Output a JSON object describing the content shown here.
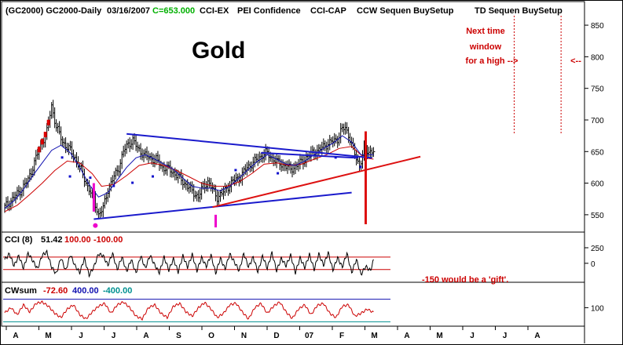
{
  "chart_data": {
    "type": "line",
    "header": {
      "symbol": "(GC2000) GC2000-Daily",
      "date": "03/16/2007",
      "close": "C=653.000",
      "studies": [
        "CCI-EX",
        "PEI Confidence",
        "CCI-CAP",
        "CCW Sequen BuySetup",
        "TD Sequen BuySetup"
      ]
    },
    "title": "Gold",
    "annotations": {
      "time_window": [
        "Next time",
        "window",
        "for a high -->"
      ],
      "arrow_right": "<--",
      "gift_note": "-150 would be a 'gift'."
    },
    "colors": {
      "price": "#000000",
      "ma_fast": "#1010b0",
      "ma_slow": "#cc0000",
      "trendline_blue": "#1a1acc",
      "trendline_red": "#dd1111",
      "magenta": "#ee00cc",
      "annotation_red": "#cc0000",
      "cci_level_high": "#cc0000",
      "cci_level_low": "#cc0000",
      "cw_level_high": "#1010b0",
      "cw_level_low": "#009090"
    },
    "x_axis": {
      "labels": [
        "A",
        "M",
        "J",
        "J",
        "A",
        "S",
        "O",
        "N",
        "D",
        "07",
        "F",
        "M",
        "A",
        "M",
        "J",
        "J",
        "A"
      ]
    },
    "price_panel": {
      "y_axis_ticks": [
        850,
        800,
        750,
        700,
        650,
        600,
        550
      ],
      "ylim": [
        530,
        865
      ],
      "x_index_range": [
        0,
        243
      ],
      "close_series": [
        [
          0,
          562
        ],
        [
          5,
          575
        ],
        [
          10,
          588
        ],
        [
          15,
          605
        ],
        [
          20,
          640
        ],
        [
          24,
          665
        ],
        [
          27,
          682
        ],
        [
          30,
          722
        ],
        [
          33,
          690
        ],
        [
          37,
          665
        ],
        [
          41,
          655
        ],
        [
          45,
          640
        ],
        [
          49,
          620
        ],
        [
          53,
          595
        ],
        [
          57,
          575
        ],
        [
          60,
          550
        ],
        [
          63,
          560
        ],
        [
          66,
          590
        ],
        [
          70,
          610
        ],
        [
          73,
          625
        ],
        [
          76,
          650
        ],
        [
          79,
          662
        ],
        [
          82,
          668
        ],
        [
          85,
          655
        ],
        [
          89,
          645
        ],
        [
          93,
          640
        ],
        [
          97,
          637
        ],
        [
          101,
          625
        ],
        [
          105,
          622
        ],
        [
          109,
          615
        ],
        [
          113,
          605
        ],
        [
          117,
          595
        ],
        [
          121,
          585
        ],
        [
          124,
          578
        ],
        [
          127,
          595
        ],
        [
          130,
          602
        ],
        [
          133,
          590
        ],
        [
          136,
          578
        ],
        [
          139,
          583
        ],
        [
          143,
          595
        ],
        [
          147,
          605
        ],
        [
          151,
          610
        ],
        [
          155,
          625
        ],
        [
          159,
          632
        ],
        [
          163,
          641
        ],
        [
          167,
          648
        ],
        [
          171,
          640
        ],
        [
          175,
          632
        ],
        [
          179,
          628
        ],
        [
          183,
          622
        ],
        [
          187,
          628
        ],
        [
          191,
          636
        ],
        [
          194,
          642
        ],
        [
          197,
          648
        ],
        [
          201,
          652
        ],
        [
          205,
          660
        ],
        [
          209,
          665
        ],
        [
          213,
          670
        ],
        [
          215,
          682
        ],
        [
          218,
          688
        ],
        [
          221,
          670
        ],
        [
          224,
          645
        ],
        [
          227,
          628
        ],
        [
          230,
          652
        ],
        [
          233,
          650
        ],
        [
          236,
          652
        ]
      ],
      "ma_fast_series": [
        [
          0,
          560
        ],
        [
          6,
          572
        ],
        [
          12,
          590
        ],
        [
          18,
          612
        ],
        [
          24,
          632
        ],
        [
          30,
          652
        ],
        [
          36,
          660
        ],
        [
          42,
          648
        ],
        [
          48,
          625
        ],
        [
          54,
          598
        ],
        [
          60,
          578
        ],
        [
          66,
          585
        ],
        [
          72,
          605
        ],
        [
          78,
          625
        ],
        [
          84,
          640
        ],
        [
          90,
          645
        ],
        [
          96,
          638
        ],
        [
          102,
          630
        ],
        [
          108,
          622
        ],
        [
          114,
          608
        ],
        [
          120,
          595
        ],
        [
          126,
          592
        ],
        [
          132,
          592
        ],
        [
          138,
          588
        ],
        [
          144,
          595
        ],
        [
          150,
          608
        ],
        [
          156,
          622
        ],
        [
          162,
          635
        ],
        [
          168,
          645
        ],
        [
          174,
          638
        ],
        [
          180,
          630
        ],
        [
          186,
          628
        ],
        [
          192,
          635
        ],
        [
          198,
          645
        ],
        [
          204,
          655
        ],
        [
          210,
          663
        ],
        [
          216,
          675
        ],
        [
          222,
          665
        ],
        [
          228,
          645
        ],
        [
          236,
          645
        ]
      ],
      "ma_slow_series": [
        [
          0,
          555
        ],
        [
          8,
          565
        ],
        [
          16,
          582
        ],
        [
          24,
          600
        ],
        [
          32,
          620
        ],
        [
          40,
          635
        ],
        [
          48,
          632
        ],
        [
          56,
          615
        ],
        [
          62,
          595
        ],
        [
          70,
          598
        ],
        [
          78,
          612
        ],
        [
          86,
          628
        ],
        [
          94,
          632
        ],
        [
          102,
          628
        ],
        [
          110,
          620
        ],
        [
          118,
          610
        ],
        [
          126,
          600
        ],
        [
          134,
          595
        ],
        [
          142,
          595
        ],
        [
          150,
          602
        ],
        [
          158,
          615
        ],
        [
          166,
          630
        ],
        [
          174,
          632
        ],
        [
          182,
          628
        ],
        [
          190,
          630
        ],
        [
          198,
          638
        ],
        [
          206,
          645
        ],
        [
          214,
          655
        ],
        [
          222,
          658
        ],
        [
          230,
          640
        ],
        [
          236,
          638
        ]
      ],
      "markers": {
        "red_early_x": [
          22,
          24,
          26,
          28
        ],
        "blue_dots": [
          [
            37,
            640
          ],
          [
            42,
            610
          ],
          [
            55,
            608
          ],
          [
            70,
            595
          ],
          [
            82,
            600
          ],
          [
            95,
            610
          ],
          [
            148,
            620
          ],
          [
            175,
            615
          ],
          [
            212,
            640
          ],
          [
            228,
            625
          ]
        ],
        "magenta_bars_x": [
          57,
          135,
          231
        ],
        "magenta_dot_x": 58,
        "red_vline_x": 231
      },
      "trendlines": [
        {
          "color": "blue",
          "points": [
            [
              57,
              543
            ],
            [
              222,
              585
            ]
          ]
        },
        {
          "color": "blue",
          "points": [
            [
              78,
              678
            ],
            [
              235,
              640
            ]
          ]
        },
        {
          "color": "red",
          "points": [
            [
              133,
              562
            ],
            [
              266,
              642
            ]
          ]
        },
        {
          "color": "blue",
          "points": [
            [
              164,
              648
            ],
            [
              226,
              640
            ]
          ]
        }
      ],
      "vlines_dashed": [
        {
          "color": "red",
          "x_index": 326
        },
        {
          "color": "red",
          "x_index": 356
        }
      ]
    },
    "cci_panel": {
      "label": "CCI (8)",
      "value": "51.42",
      "level_high": "100.00",
      "level_low": "-100.00",
      "y_axis_ticks": [
        250,
        0
      ],
      "ylim": [
        -280,
        300
      ],
      "levels": [
        100,
        -100
      ],
      "series": [
        [
          0,
          60
        ],
        [
          3,
          150
        ],
        [
          6,
          -40
        ],
        [
          9,
          120
        ],
        [
          12,
          -80
        ],
        [
          15,
          160
        ],
        [
          18,
          40
        ],
        [
          21,
          -90
        ],
        [
          24,
          130
        ],
        [
          27,
          180
        ],
        [
          30,
          -60
        ],
        [
          33,
          -170
        ],
        [
          36,
          90
        ],
        [
          39,
          -120
        ],
        [
          42,
          140
        ],
        [
          45,
          -40
        ],
        [
          48,
          -150
        ],
        [
          51,
          80
        ],
        [
          54,
          -190
        ],
        [
          57,
          -60
        ],
        [
          60,
          150
        ],
        [
          63,
          120
        ],
        [
          66,
          -30
        ],
        [
          69,
          160
        ],
        [
          72,
          -100
        ],
        [
          75,
          100
        ],
        [
          78,
          -130
        ],
        [
          81,
          60
        ],
        [
          84,
          -160
        ],
        [
          87,
          120
        ],
        [
          90,
          -80
        ],
        [
          93,
          130
        ],
        [
          96,
          -30
        ],
        [
          99,
          -150
        ],
        [
          102,
          100
        ],
        [
          105,
          -110
        ],
        [
          108,
          70
        ],
        [
          111,
          -140
        ],
        [
          114,
          120
        ],
        [
          117,
          -60
        ],
        [
          120,
          140
        ],
        [
          123,
          -120
        ],
        [
          126,
          90
        ],
        [
          129,
          -50
        ],
        [
          132,
          130
        ],
        [
          135,
          -160
        ],
        [
          138,
          80
        ],
        [
          141,
          -90
        ],
        [
          144,
          150
        ],
        [
          147,
          20
        ],
        [
          150,
          -120
        ],
        [
          153,
          160
        ],
        [
          156,
          -60
        ],
        [
          159,
          100
        ],
        [
          162,
          -140
        ],
        [
          165,
          120
        ],
        [
          168,
          -80
        ],
        [
          171,
          170
        ],
        [
          174,
          -120
        ],
        [
          177,
          80
        ],
        [
          180,
          -40
        ],
        [
          183,
          130
        ],
        [
          186,
          -150
        ],
        [
          189,
          90
        ],
        [
          192,
          -70
        ],
        [
          195,
          140
        ],
        [
          198,
          -100
        ],
        [
          201,
          150
        ],
        [
          204,
          -30
        ],
        [
          207,
          170
        ],
        [
          210,
          -110
        ],
        [
          213,
          90
        ],
        [
          216,
          -60
        ],
        [
          219,
          160
        ],
        [
          222,
          -150
        ],
        [
          225,
          60
        ],
        [
          228,
          -180
        ],
        [
          231,
          -50
        ],
        [
          234,
          -120
        ],
        [
          236,
          51
        ]
      ]
    },
    "cwsum_panel": {
      "label": "CWsum",
      "value": "-72.60",
      "level_high": "400.00",
      "level_low": "-400.00",
      "y_axis_ticks": [
        100
      ],
      "ylim": [
        -500,
        500
      ],
      "levels": [
        400,
        -400
      ],
      "series": [
        [
          0,
          -80
        ],
        [
          4,
          100
        ],
        [
          8,
          -150
        ],
        [
          12,
          200
        ],
        [
          16,
          -50
        ],
        [
          20,
          250
        ],
        [
          24,
          300
        ],
        [
          28,
          150
        ],
        [
          32,
          -100
        ],
        [
          36,
          -250
        ],
        [
          40,
          50
        ],
        [
          44,
          200
        ],
        [
          48,
          -150
        ],
        [
          52,
          -300
        ],
        [
          56,
          -50
        ],
        [
          60,
          150
        ],
        [
          64,
          250
        ],
        [
          68,
          -100
        ],
        [
          72,
          200
        ],
        [
          76,
          300
        ],
        [
          80,
          100
        ],
        [
          84,
          -200
        ],
        [
          88,
          -300
        ],
        [
          92,
          100
        ],
        [
          96,
          200
        ],
        [
          100,
          -100
        ],
        [
          104,
          -250
        ],
        [
          108,
          150
        ],
        [
          112,
          250
        ],
        [
          116,
          -50
        ],
        [
          120,
          -200
        ],
        [
          124,
          100
        ],
        [
          128,
          280
        ],
        [
          132,
          50
        ],
        [
          136,
          -250
        ],
        [
          140,
          -100
        ],
        [
          144,
          200
        ],
        [
          148,
          260
        ],
        [
          152,
          -50
        ],
        [
          156,
          -300
        ],
        [
          160,
          100
        ],
        [
          164,
          250
        ],
        [
          168,
          -100
        ],
        [
          172,
          150
        ],
        [
          176,
          300
        ],
        [
          180,
          -50
        ],
        [
          184,
          -280
        ],
        [
          188,
          50
        ],
        [
          192,
          200
        ],
        [
          196,
          -150
        ],
        [
          200,
          180
        ],
        [
          204,
          250
        ],
        [
          208,
          -100
        ],
        [
          212,
          -250
        ],
        [
          216,
          150
        ],
        [
          220,
          200
        ],
        [
          224,
          -200
        ],
        [
          228,
          -100
        ],
        [
          232,
          50
        ],
        [
          236,
          -72
        ]
      ]
    }
  }
}
